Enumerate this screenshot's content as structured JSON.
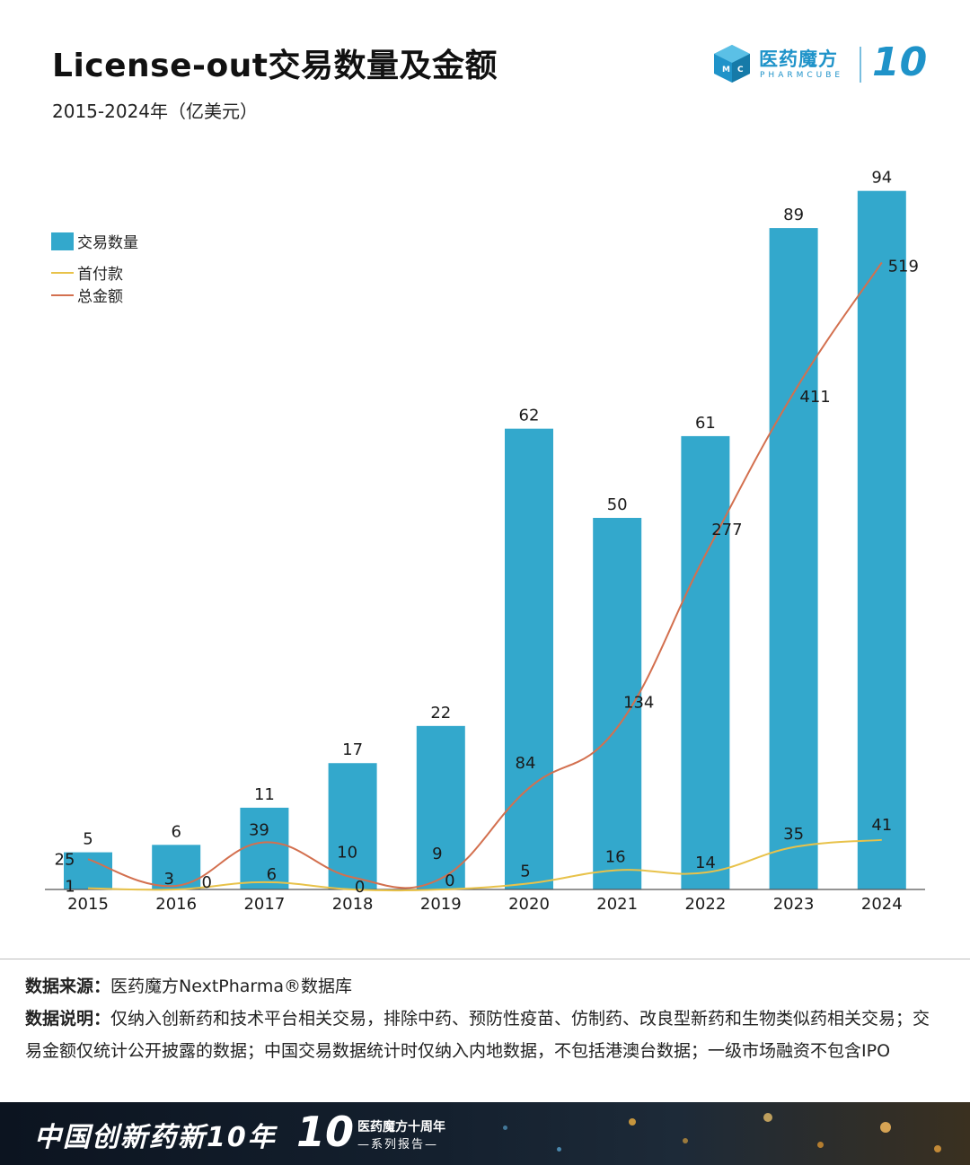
{
  "header": {
    "title": "License-out交易数量及金额",
    "subtitle": "2015-2024年（亿美元）"
  },
  "logo": {
    "cn": "医药魔方",
    "en": "PHARMCUBE",
    "ten": "10",
    "cube_letters": [
      "M",
      "C"
    ]
  },
  "chart_data": {
    "type": "bar",
    "title": "License-out交易数量及金额",
    "subtitle": "2015-2024年（亿美元）",
    "categories": [
      "2015",
      "2016",
      "2017",
      "2018",
      "2019",
      "2020",
      "2021",
      "2022",
      "2023",
      "2024"
    ],
    "series": [
      {
        "name": "交易数量",
        "type": "bar",
        "color": "#33a8cc",
        "values": [
          5,
          6,
          11,
          17,
          22,
          62,
          50,
          61,
          89,
          94
        ]
      },
      {
        "name": "首付款",
        "type": "line",
        "color": "#e8c24a",
        "values": [
          1,
          0,
          6,
          0,
          0,
          5,
          16,
          14,
          35,
          41
        ]
      },
      {
        "name": "总金额",
        "type": "line",
        "color": "#d3704f",
        "values": [
          25,
          3,
          39,
          10,
          9,
          84,
          134,
          277,
          411,
          519
        ]
      }
    ],
    "legend_position": "top-left",
    "grid": false
  },
  "notes": {
    "source_label": "数据来源：",
    "source_text": "医药魔方NextPharma®数据库",
    "desc_label": "数据说明：",
    "desc_text": "仅纳入创新药和技术平台相关交易，排除中药、预防性疫苗、仿制药、改良型新药和生物类似药相关交易；交易金额仅统计公开披露的数据；中国交易数据统计时仅纳入内地数据，不包括港澳台数据；一级市场融资不包含IPO"
  },
  "footer": {
    "slogan": "中国创新药新10年",
    "ten": "10",
    "series_line1": "医药魔方十周年",
    "series_line2": "—系列报告—"
  }
}
